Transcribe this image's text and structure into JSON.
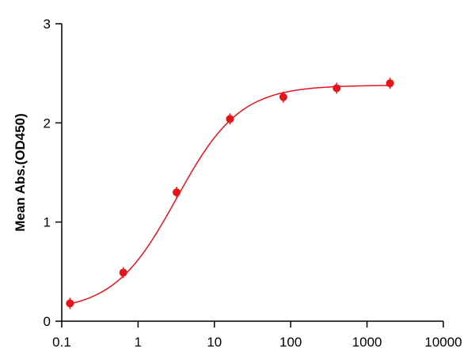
{
  "chart_data": {
    "type": "scatter",
    "title": "",
    "xlabel": "",
    "ylabel": "Mean Abs.(OD450)",
    "x_scale": "log",
    "xlim": [
      0.1,
      10000
    ],
    "ylim": [
      0,
      3
    ],
    "x_ticks": [
      0.1,
      1,
      10,
      100,
      1000,
      10000
    ],
    "x_tick_labels": [
      "0.1",
      "1",
      "10",
      "100",
      "1000",
      "10000"
    ],
    "y_ticks": [
      0,
      1,
      2,
      3
    ],
    "y_tick_labels": [
      "0",
      "1",
      "2",
      "3"
    ],
    "grid": false,
    "color": "#e8141c",
    "series": [
      {
        "x": [
          0.128,
          0.64,
          3.2,
          16,
          80,
          400,
          2000
        ],
        "y": [
          0.18,
          0.49,
          1.3,
          2.04,
          2.26,
          2.35,
          2.4
        ],
        "fit": "four-parameter logistic"
      }
    ]
  }
}
